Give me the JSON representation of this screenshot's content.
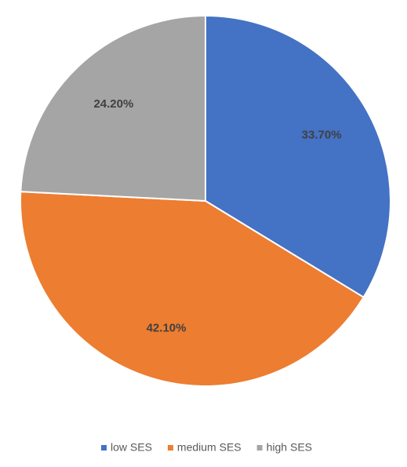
{
  "chart_data": {
    "type": "pie",
    "categories": [
      "low SES",
      "medium SES",
      "high SES"
    ],
    "values": [
      33.7,
      42.1,
      24.2
    ],
    "value_labels": [
      "33.70%",
      "42.10%",
      "24.20%"
    ],
    "colors": [
      "#4472c4",
      "#ed7d31",
      "#a5a5a5"
    ],
    "legend": "bottom"
  }
}
